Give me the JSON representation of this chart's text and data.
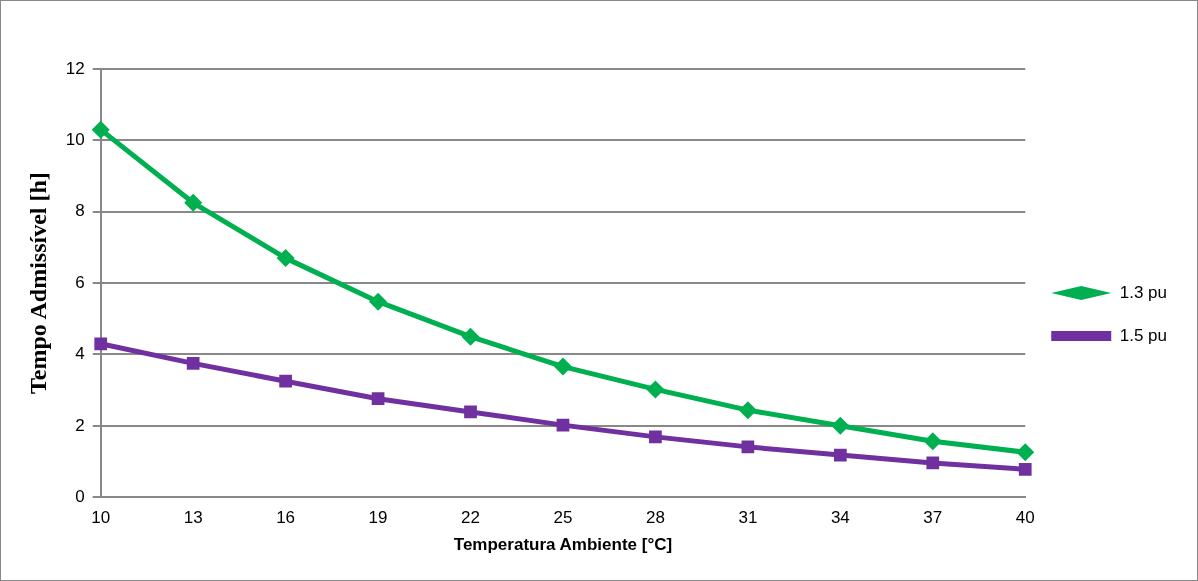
{
  "chart_data": {
    "type": "line",
    "xlabel": "Temperatura Ambiente [°C]",
    "ylabel": "Tempo Admissível [h]",
    "categories": [
      "10",
      "13",
      "16",
      "19",
      "22",
      "25",
      "28",
      "31",
      "34",
      "37",
      "40"
    ],
    "series": [
      {
        "name": "1.3 pu",
        "color": "#00b050",
        "marker": "diamond",
        "values": [
          10.3,
          8.25,
          6.7,
          5.48,
          4.5,
          3.66,
          3.02,
          2.44,
          2.0,
          1.57,
          1.26
        ]
      },
      {
        "name": "1.5 pu",
        "color": "#7030a0",
        "marker": "square",
        "values": [
          4.3,
          3.75,
          3.25,
          2.76,
          2.39,
          2.02,
          1.69,
          1.41,
          1.18,
          0.96,
          0.78
        ]
      }
    ],
    "ylim": [
      0,
      12
    ],
    "yticks": [
      0,
      2,
      4,
      6,
      8,
      10,
      12
    ],
    "grid": "y",
    "legend": "right",
    "line_style": "solid"
  }
}
